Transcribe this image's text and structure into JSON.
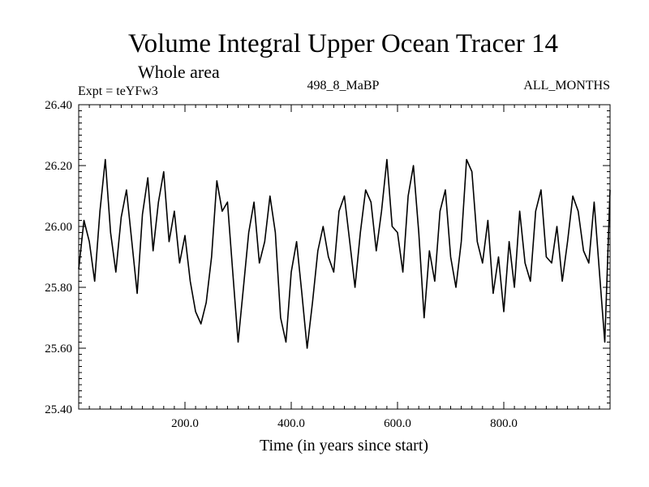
{
  "chart_data": {
    "type": "line",
    "title": "Volume Integral Upper Ocean Tracer 14",
    "subtitle": "Whole area",
    "expt_label": "Expt = teYFw3",
    "run_label": "498_8_MaBP",
    "period_label": "ALL_MONTHS",
    "xlabel": "Time (in years since start)",
    "ylabel": "",
    "xlim": [
      0,
      1000
    ],
    "ylim": [
      25.4,
      26.4
    ],
    "x_ticks": [
      200,
      400,
      600,
      800
    ],
    "x_tick_labels": [
      "200.0",
      "400.0",
      "600.0",
      "800.0"
    ],
    "y_ticks": [
      25.4,
      25.6,
      25.8,
      26.0,
      26.2,
      26.4
    ],
    "y_tick_labels": [
      "25.40",
      "25.60",
      "25.80",
      "26.00",
      "26.20",
      "26.40"
    ],
    "line_color": "#000000",
    "grid": false,
    "series": [
      {
        "name": "Tracer 14",
        "x": [
          0,
          10,
          20,
          30,
          40,
          50,
          60,
          70,
          80,
          90,
          100,
          110,
          120,
          130,
          140,
          150,
          160,
          170,
          180,
          190,
          200,
          210,
          220,
          230,
          240,
          250,
          260,
          270,
          280,
          290,
          300,
          310,
          320,
          330,
          340,
          350,
          360,
          370,
          380,
          390,
          400,
          410,
          420,
          430,
          440,
          450,
          460,
          470,
          480,
          490,
          500,
          510,
          520,
          530,
          540,
          550,
          560,
          570,
          580,
          590,
          600,
          610,
          620,
          630,
          640,
          650,
          660,
          670,
          680,
          690,
          700,
          710,
          720,
          730,
          740,
          750,
          760,
          770,
          780,
          790,
          800,
          810,
          820,
          830,
          840,
          850,
          860,
          870,
          880,
          890,
          900,
          910,
          920,
          930,
          940,
          950,
          960,
          970,
          980,
          990,
          1000
        ],
        "values": [
          25.86,
          26.02,
          25.95,
          25.82,
          26.05,
          26.22,
          25.98,
          25.85,
          26.03,
          26.12,
          25.95,
          25.78,
          26.04,
          26.16,
          25.92,
          26.08,
          26.18,
          25.95,
          26.05,
          25.88,
          25.97,
          25.82,
          25.72,
          25.68,
          25.75,
          25.9,
          26.15,
          26.05,
          26.08,
          25.85,
          25.62,
          25.8,
          25.98,
          26.08,
          25.88,
          25.95,
          26.1,
          25.98,
          25.7,
          25.62,
          25.85,
          25.95,
          25.78,
          25.6,
          25.75,
          25.92,
          26.0,
          25.9,
          25.85,
          26.05,
          26.1,
          25.95,
          25.8,
          25.98,
          26.12,
          26.08,
          25.92,
          26.05,
          26.22,
          26.0,
          25.98,
          25.85,
          26.1,
          26.2,
          25.98,
          25.7,
          25.92,
          25.82,
          26.05,
          26.12,
          25.9,
          25.8,
          25.95,
          26.22,
          26.18,
          25.95,
          25.88,
          26.02,
          25.78,
          25.9,
          25.72,
          25.95,
          25.8,
          26.05,
          25.88,
          25.82,
          26.05,
          26.12,
          25.9,
          25.88,
          26.0,
          25.82,
          25.95,
          26.1,
          26.05,
          25.92,
          25.88,
          26.08,
          25.85,
          25.62,
          26.12
        ]
      }
    ]
  }
}
